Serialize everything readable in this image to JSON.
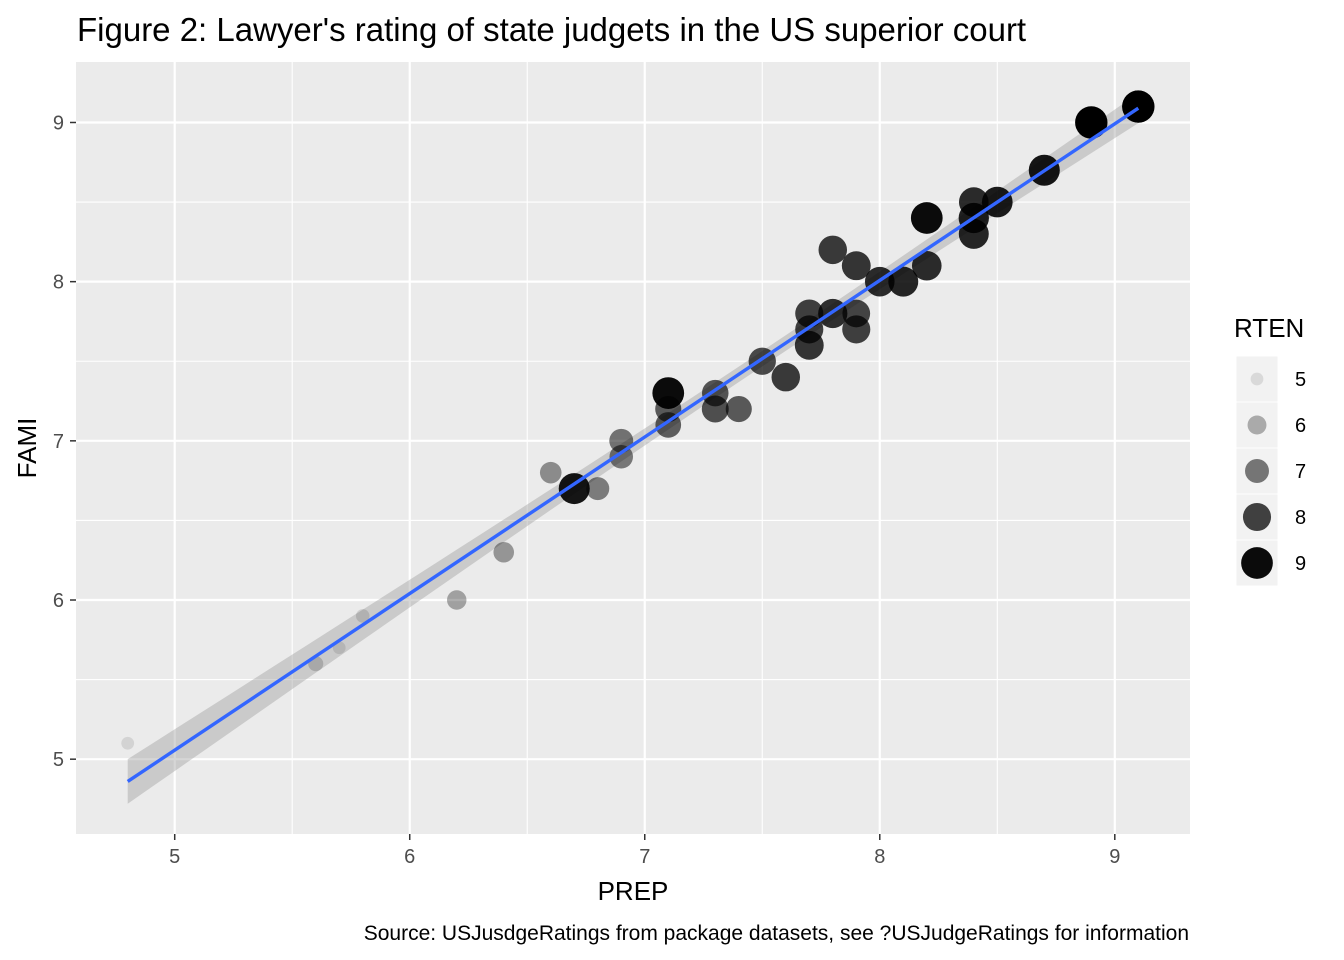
{
  "chart_data": {
    "type": "scatter",
    "title": "Figure 2: Lawyer's rating of state judgets in the US superior court",
    "xlabel": "PREP",
    "ylabel": "FAMI",
    "caption": "Source: USJusdgeRatings from package datasets, see ?USJudgeRatings for information",
    "xlim": [
      4.58,
      9.32
    ],
    "ylim": [
      4.53,
      9.38
    ],
    "xticks": [
      "5",
      "6",
      "7",
      "8",
      "9"
    ],
    "yticks": [
      "5",
      "6",
      "7",
      "8",
      "9"
    ],
    "grid": true,
    "legend": {
      "title": "RTEN",
      "position": "right",
      "entries": [
        "5",
        "6",
        "7",
        "8",
        "9"
      ]
    },
    "trend": {
      "method": "lm",
      "color": "#3366FF",
      "x": [
        4.8,
        9.1
      ],
      "y": [
        4.86,
        9.09
      ],
      "ribbon": true
    },
    "points": [
      {
        "x": 4.8,
        "y": 5.1,
        "rten": 5.1
      },
      {
        "x": 5.6,
        "y": 5.6,
        "rten": 5.4
      },
      {
        "x": 5.7,
        "y": 5.7,
        "rten": 5.1
      },
      {
        "x": 5.8,
        "y": 5.9,
        "rten": 5.2
      },
      {
        "x": 6.2,
        "y": 6.0,
        "rten": 6.1
      },
      {
        "x": 6.4,
        "y": 6.3,
        "rten": 6.3
      },
      {
        "x": 6.6,
        "y": 6.8,
        "rten": 6.5
      },
      {
        "x": 6.7,
        "y": 6.7,
        "rten": 8.8
      },
      {
        "x": 6.8,
        "y": 6.7,
        "rten": 6.8
      },
      {
        "x": 6.9,
        "y": 6.9,
        "rten": 6.9
      },
      {
        "x": 6.9,
        "y": 7.0,
        "rten": 7.0
      },
      {
        "x": 7.1,
        "y": 7.1,
        "rten": 7.4
      },
      {
        "x": 7.1,
        "y": 7.2,
        "rten": 7.5
      },
      {
        "x": 7.1,
        "y": 7.3,
        "rten": 9.0
      },
      {
        "x": 7.3,
        "y": 7.2,
        "rten": 7.7
      },
      {
        "x": 7.3,
        "y": 7.3,
        "rten": 7.6
      },
      {
        "x": 7.4,
        "y": 7.2,
        "rten": 7.5
      },
      {
        "x": 7.5,
        "y": 7.5,
        "rten": 7.8
      },
      {
        "x": 7.6,
        "y": 7.4,
        "rten": 8.1
      },
      {
        "x": 7.7,
        "y": 7.6,
        "rten": 8.2
      },
      {
        "x": 7.7,
        "y": 7.7,
        "rten": 8.0
      },
      {
        "x": 7.7,
        "y": 7.8,
        "rten": 8.0
      },
      {
        "x": 7.8,
        "y": 7.8,
        "rten": 8.3
      },
      {
        "x": 7.8,
        "y": 8.2,
        "rten": 8.1
      },
      {
        "x": 7.9,
        "y": 7.7,
        "rten": 8.0
      },
      {
        "x": 7.9,
        "y": 7.8,
        "rten": 7.9
      },
      {
        "x": 7.9,
        "y": 8.1,
        "rten": 8.2
      },
      {
        "x": 8.0,
        "y": 8.0,
        "rten": 8.4
      },
      {
        "x": 8.1,
        "y": 8.0,
        "rten": 8.5
      },
      {
        "x": 8.2,
        "y": 8.1,
        "rten": 8.4
      },
      {
        "x": 8.2,
        "y": 8.4,
        "rten": 9.0
      },
      {
        "x": 8.4,
        "y": 8.3,
        "rten": 8.5
      },
      {
        "x": 8.4,
        "y": 8.4,
        "rten": 8.6
      },
      {
        "x": 8.4,
        "y": 8.5,
        "rten": 8.4
      },
      {
        "x": 8.5,
        "y": 8.5,
        "rten": 8.7
      },
      {
        "x": 8.7,
        "y": 8.7,
        "rten": 8.8
      },
      {
        "x": 8.9,
        "y": 9.0,
        "rten": 9.2
      },
      {
        "x": 9.1,
        "y": 9.1,
        "rten": 9.2
      },
      {
        "x": 9.1,
        "y": 9.1,
        "rten": 9.1
      }
    ]
  }
}
